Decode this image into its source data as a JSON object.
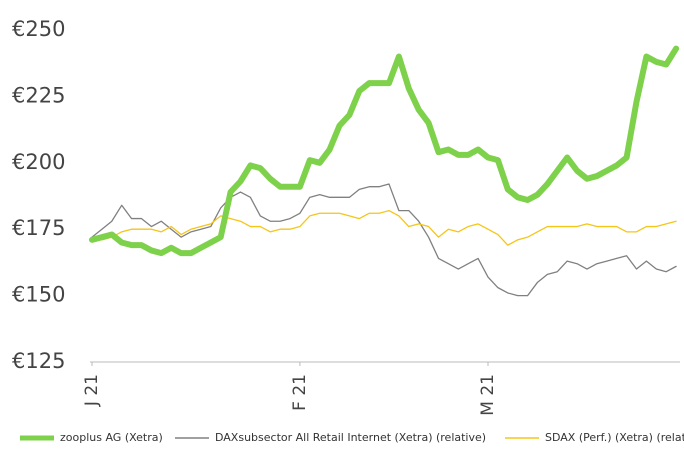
{
  "chart_data": {
    "type": "line",
    "categories": [
      "J 21",
      null,
      null,
      null,
      null,
      null,
      null,
      null,
      null,
      null,
      null,
      null,
      null,
      null,
      null,
      null,
      null,
      null,
      null,
      null,
      null,
      "F 21",
      null,
      null,
      null,
      null,
      null,
      null,
      null,
      null,
      null,
      null,
      null,
      null,
      null,
      null,
      null,
      null,
      null,
      null,
      "M 21",
      null,
      null,
      null,
      null,
      null,
      null,
      null,
      null,
      null,
      null,
      null,
      null,
      null,
      null,
      null,
      null,
      null,
      null,
      null
    ],
    "series": [
      {
        "name": "zooplus AG (Xetra)",
        "color": "#7ed14a",
        "width": 6,
        "values": [
          171,
          172,
          173,
          170,
          169,
          169,
          167,
          166,
          168,
          166,
          166,
          168,
          170,
          172,
          189,
          193,
          199,
          198,
          194,
          191,
          191,
          191,
          201,
          200,
          205,
          214,
          218,
          227,
          230,
          230,
          230,
          240,
          228,
          220,
          215,
          204,
          205,
          203,
          203,
          205,
          202,
          201,
          190,
          187,
          186,
          188,
          192,
          197,
          202,
          197,
          194,
          195,
          197,
          199,
          202,
          223,
          240,
          238,
          237,
          243
        ]
      },
      {
        "name": "DAXsubsector All Retail Internet (Xetra) (relative)",
        "color": "#808080",
        "width": 1.3,
        "values": [
          172,
          175,
          178,
          184,
          179,
          179,
          176,
          178,
          175,
          172,
          174,
          175,
          176,
          183,
          187,
          189,
          187,
          180,
          178,
          178,
          179,
          181,
          187,
          188,
          187,
          187,
          187,
          190,
          191,
          191,
          192,
          182,
          182,
          178,
          172,
          164,
          162,
          160,
          162,
          164,
          157,
          153,
          151,
          150,
          150,
          155,
          158,
          159,
          163,
          162,
          160,
          162,
          163,
          164,
          165,
          160,
          163,
          160,
          159,
          161
        ]
      },
      {
        "name": "SDAX (Perf.) (Xetra) (relative)",
        "color": "#f5c518",
        "width": 1.3,
        "values": [
          171,
          171,
          172,
          174,
          175,
          175,
          175,
          174,
          176,
          173,
          175,
          176,
          177,
          180,
          179,
          178,
          176,
          176,
          174,
          175,
          175,
          176,
          180,
          181,
          181,
          181,
          180,
          179,
          181,
          181,
          182,
          180,
          176,
          177,
          176,
          172,
          175,
          174,
          176,
          177,
          175,
          173,
          169,
          171,
          172,
          174,
          176,
          176,
          176,
          176,
          177,
          176,
          176,
          176,
          174,
          174,
          176,
          176,
          177,
          178
        ]
      }
    ],
    "ylim": [
      125,
      250
    ],
    "yticks": [
      {
        "value": 125,
        "label": "€125"
      },
      {
        "value": 150,
        "label": "€150"
      },
      {
        "value": 175,
        "label": "€175"
      },
      {
        "value": 200,
        "label": "€200"
      },
      {
        "value": 225,
        "label": "€225"
      },
      {
        "value": 250,
        "label": "€250"
      }
    ],
    "legend": "bottom"
  }
}
